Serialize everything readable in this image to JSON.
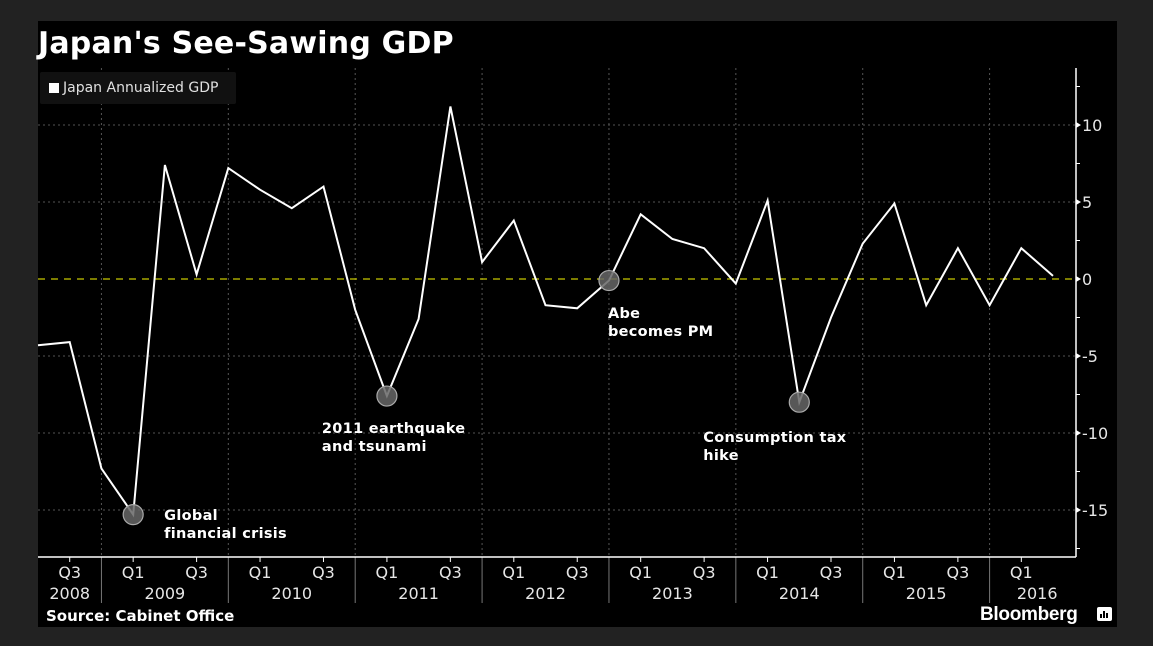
{
  "title": "Japan's See-Sawing GDP",
  "legend": {
    "label": "Japan Annualized GDP",
    "color": "#ffffff"
  },
  "source": "Source: Cabinet Office",
  "brand": "Bloomberg",
  "colors": {
    "background": "#222222",
    "panel": "#000000",
    "line": "#ffffff",
    "zero_line": "#c8c800",
    "grid": "#555555",
    "annotation_marker": "#666666"
  },
  "chart_data": {
    "type": "line",
    "title": "Japan's See-Sawing GDP",
    "xlabel": "",
    "ylabel": "",
    "ylim": [
      -18,
      13.7
    ],
    "grid": true,
    "legend_position": "top-left",
    "y_axis_side": "right",
    "y_ticks": [
      10,
      5,
      0,
      -5,
      -10,
      -15
    ],
    "y_tick_labels": [
      "10",
      "5",
      "0",
      "-5",
      "-10",
      "-15"
    ],
    "x": [
      "Q2 2008",
      "Q3 2008",
      "Q4 2008",
      "Q1 2009",
      "Q2 2009",
      "Q3 2009",
      "Q4 2009",
      "Q1 2010",
      "Q2 2010",
      "Q3 2010",
      "Q4 2010",
      "Q1 2011",
      "Q2 2011",
      "Q3 2011",
      "Q4 2011",
      "Q1 2012",
      "Q2 2012",
      "Q3 2012",
      "Q4 2012",
      "Q1 2013",
      "Q2 2013",
      "Q3 2013",
      "Q4 2013",
      "Q1 2014",
      "Q2 2014",
      "Q3 2014",
      "Q4 2014",
      "Q1 2015",
      "Q2 2015",
      "Q3 2015",
      "Q4 2015",
      "Q1 2016",
      "Q2 2016"
    ],
    "series": [
      {
        "name": "Japan Annualized GDP",
        "values": [
          -4.3,
          -4.1,
          -12.3,
          -15.3,
          7.4,
          0.3,
          7.2,
          5.8,
          4.6,
          6.0,
          -2.0,
          -7.6,
          -2.6,
          11.2,
          1.1,
          3.8,
          -1.7,
          -1.9,
          -0.1,
          4.2,
          2.6,
          2.0,
          -0.3,
          5.1,
          -8.0,
          -2.5,
          2.3,
          4.9,
          -1.7,
          2.0,
          -1.7,
          2.0,
          0.2
        ]
      }
    ],
    "x_tick_labels": [
      {
        "quarter": "Q3",
        "index": 1
      },
      {
        "quarter": "Q1",
        "index": 3
      },
      {
        "quarter": "Q3",
        "index": 5
      },
      {
        "quarter": "Q1",
        "index": 7
      },
      {
        "quarter": "Q3",
        "index": 9
      },
      {
        "quarter": "Q1",
        "index": 11
      },
      {
        "quarter": "Q3",
        "index": 13
      },
      {
        "quarter": "Q1",
        "index": 15
      },
      {
        "quarter": "Q3",
        "index": 17
      },
      {
        "quarter": "Q1",
        "index": 19
      },
      {
        "quarter": "Q3",
        "index": 21
      },
      {
        "quarter": "Q1",
        "index": 23
      },
      {
        "quarter": "Q3",
        "index": 25
      },
      {
        "quarter": "Q1",
        "index": 27
      },
      {
        "quarter": "Q3",
        "index": 29
      },
      {
        "quarter": "Q1",
        "index": 31
      }
    ],
    "year_labels": [
      {
        "year": "2008",
        "center_index": 1
      },
      {
        "year": "2009",
        "center_index": 4
      },
      {
        "year": "2010",
        "center_index": 8
      },
      {
        "year": "2011",
        "center_index": 12
      },
      {
        "year": "2012",
        "center_index": 16
      },
      {
        "year": "2013",
        "center_index": 20
      },
      {
        "year": "2014",
        "center_index": 24
      },
      {
        "year": "2015",
        "center_index": 28
      },
      {
        "year": "2016",
        "center_index": 31.5
      }
    ],
    "year_separators_after_index": [
      2,
      6,
      10,
      14,
      18,
      22,
      26,
      30
    ],
    "reference_line": {
      "y": 0,
      "style": "dashed",
      "color": "#c8c800"
    },
    "annotations": [
      {
        "index": 3,
        "lines": [
          "Global",
          "financial crisis"
        ]
      },
      {
        "index": 11,
        "lines": [
          "2011 earthquake",
          "and tsunami"
        ]
      },
      {
        "index": 18,
        "lines": [
          "Abe",
          "becomes PM"
        ]
      },
      {
        "index": 24,
        "lines": [
          "Consumption tax",
          "hike"
        ]
      }
    ]
  }
}
